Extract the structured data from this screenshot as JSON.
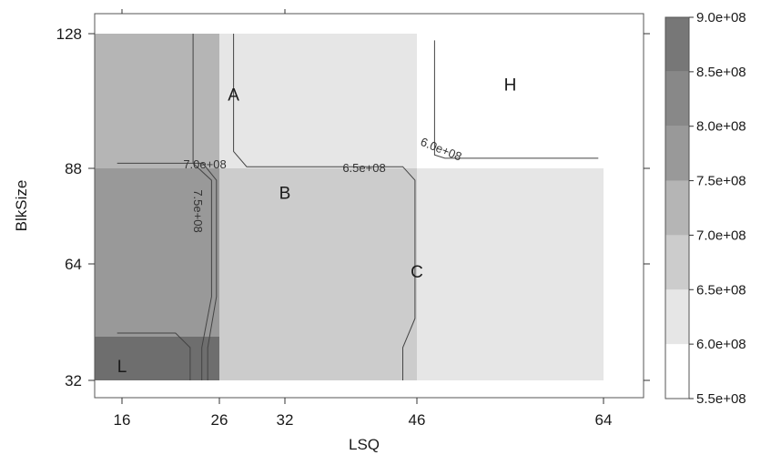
{
  "chart_data": {
    "type": "heatmap",
    "title": "",
    "xlabel": "LSQ",
    "ylabel": "BlkSize",
    "x_ticks": [
      16,
      26,
      32,
      46,
      64
    ],
    "y_ticks": [
      32,
      64,
      88,
      128
    ],
    "regions": [
      {
        "label": "L",
        "x": [
          13,
          26
        ],
        "y": [
          32,
          44
        ],
        "value": 825000000.0,
        "color": "#6e6e6e"
      },
      {
        "label": "",
        "x": [
          13,
          26
        ],
        "y": [
          44,
          88
        ],
        "value": 775000000.0,
        "color": "#999999"
      },
      {
        "label": "",
        "x": [
          13,
          26
        ],
        "y": [
          88,
          128
        ],
        "value": 725000000.0,
        "color": "#b5b5b5"
      },
      {
        "label": "A",
        "x": [
          26,
          46
        ],
        "y": [
          88,
          128
        ],
        "value": 625000000.0,
        "color": "#e6e6e6"
      },
      {
        "label": "B",
        "x": [
          26,
          46
        ],
        "y": [
          32,
          88
        ],
        "value": 675000000.0,
        "color": "#cccccc"
      },
      {
        "label": "H",
        "x": [
          46,
          64
        ],
        "y": [
          88,
          128
        ],
        "value": 575000000.0,
        "color": "#ffffff"
      },
      {
        "label": "C",
        "x": [
          46,
          64
        ],
        "y": [
          32,
          88
        ],
        "value": 625000000.0,
        "color": "#e6e6e6"
      }
    ],
    "contours": [
      {
        "label": "7.0e+08",
        "points": [
          [
            15.5,
            89.5
          ],
          [
            24.3,
            89.5
          ],
          [
            25.7,
            85
          ],
          [
            25.7,
            55
          ],
          [
            24.8,
            41
          ],
          [
            24.8,
            32
          ]
        ]
      },
      {
        "label": "7.5e+08",
        "points": [
          [
            15.5,
            45
          ],
          [
            21.5,
            45
          ],
          [
            23.0,
            41
          ],
          [
            23.0,
            32
          ]
        ]
      },
      {
        "label": "",
        "points": [
          [
            23.3,
            128
          ],
          [
            23.3,
            89.5
          ],
          [
            25.2,
            85
          ],
          [
            25.2,
            55
          ],
          [
            24.2,
            41
          ],
          [
            24.2,
            32
          ]
        ]
      },
      {
        "label": "",
        "points": [
          [
            27.3,
            128
          ],
          [
            27.3,
            93
          ],
          [
            28.5,
            88.5
          ],
          [
            44.5,
            88.5
          ],
          [
            45.8,
            85
          ],
          [
            45.8,
            49
          ],
          [
            44.5,
            41
          ],
          [
            44.5,
            32
          ]
        ]
      },
      {
        "label": "6.5e+08",
        "points": []
      },
      {
        "label": "6.0e+08",
        "points": [
          [
            47.7,
            126
          ],
          [
            47.7,
            92
          ],
          [
            48.7,
            91
          ],
          [
            63.5,
            91
          ]
        ]
      }
    ],
    "legend": {
      "position": "right",
      "levels": [
        550000000.0,
        600000000.0,
        650000000.0,
        700000000.0,
        750000000.0,
        800000000.0,
        850000000.0,
        900000000.0
      ],
      "labels": [
        "5.5e+08",
        "6.0e+08",
        "6.5e+08",
        "7.0e+08",
        "7.5e+08",
        "8.0e+08",
        "8.5e+08",
        "9.0e+08"
      ],
      "colors": [
        "#ffffff",
        "#e6e6e6",
        "#cccccc",
        "#b5b5b5",
        "#999999",
        "#888888",
        "#777777",
        "#666666"
      ]
    },
    "xlim": [
      13,
      67
    ],
    "ylim": [
      28,
      133
    ]
  }
}
